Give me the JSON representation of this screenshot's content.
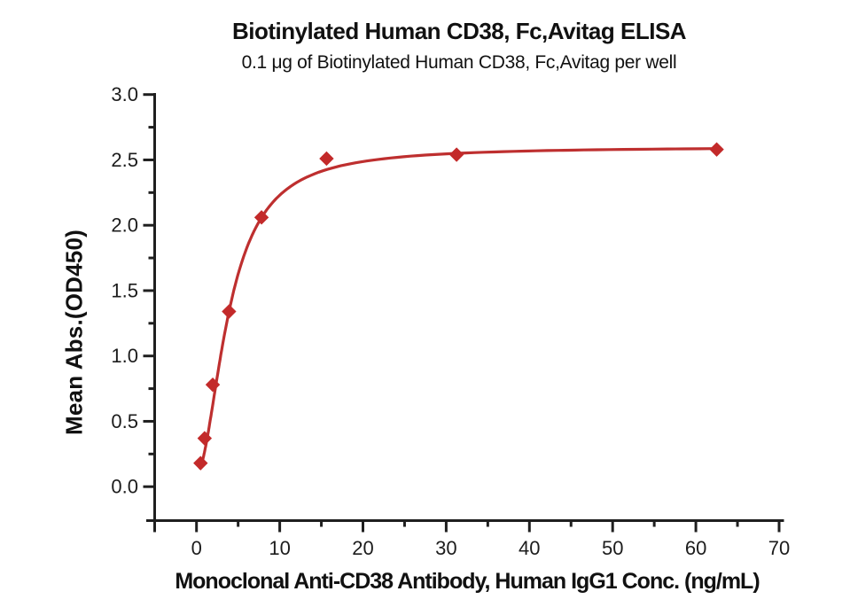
{
  "chart_data": {
    "type": "scatter",
    "title": "Biotinylated Human CD38, Fc,Avitag ELISA",
    "subtitle": "0.1 μg of Biotinylated Human CD38, Fc,Avitag per well",
    "xlabel": "Monoclonal Anti-CD38 Antibody, Human IgG1 Conc. (ng/mL)",
    "ylabel": "Mean Abs.(OD450)",
    "x": [
      0.488,
      0.977,
      1.953,
      3.906,
      7.813,
      15.625,
      31.25,
      62.5
    ],
    "y": [
      0.18,
      0.37,
      0.78,
      1.34,
      2.06,
      2.51,
      2.54,
      2.58
    ],
    "xlim": [
      0,
      70
    ],
    "ylim": [
      0,
      3
    ],
    "x_major_ticks": [
      0,
      10,
      20,
      30,
      40,
      50,
      60,
      70
    ],
    "x_tick_labels": [
      "0",
      "10",
      "20",
      "30",
      "40",
      "50",
      "60",
      "70"
    ],
    "x_minor_ticks": [
      5,
      15,
      25,
      35,
      45,
      55,
      65
    ],
    "y_major_ticks": [
      0,
      0.5,
      1,
      1.5,
      2,
      2.5,
      3
    ],
    "y_tick_labels": [
      "0.0",
      "0.5",
      "1.0",
      "1.5",
      "2.0",
      "2.5",
      "3.0"
    ],
    "y_minor_ticks": [
      0.25,
      0.75,
      1.25,
      1.75,
      2.25,
      2.75
    ],
    "grid": false,
    "legend": false,
    "marker": "diamond",
    "fit_curve": {
      "model": "4PL",
      "bottom": 0.1,
      "top": 2.6,
      "ec50": 3.94,
      "hill": 1.88,
      "x_start": 0.45,
      "x_end": 62.5
    },
    "colors": {
      "curve": "#BE2F2F",
      "marker": "#C32A2A",
      "axis": "#1f1f1f",
      "text": "#1c1c1c"
    }
  }
}
